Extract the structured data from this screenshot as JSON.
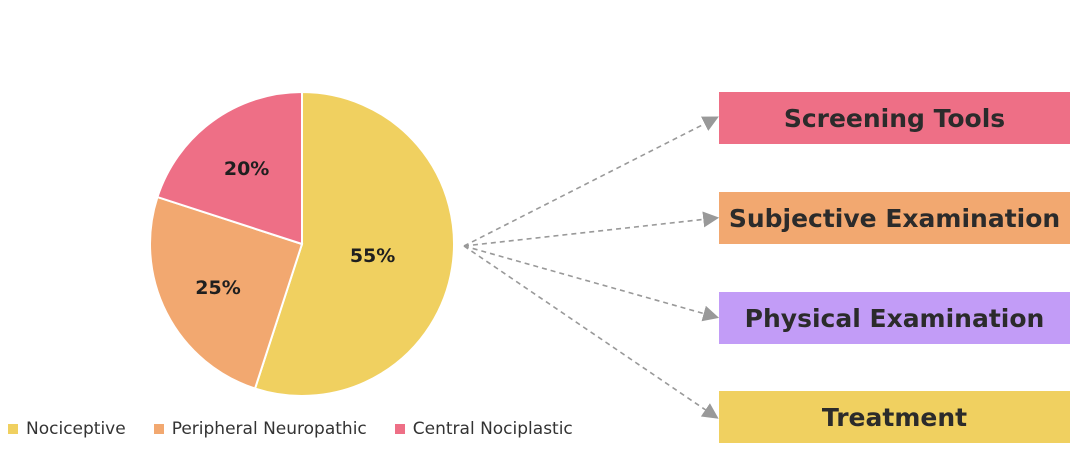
{
  "chart_data": {
    "type": "pie",
    "categories": [
      "Nociceptive",
      "Peripheral Neuropathic",
      "Central Nociplastic"
    ],
    "values": [
      55,
      25,
      20
    ],
    "labels": [
      "55%",
      "25%",
      "20%"
    ],
    "colors": [
      "#f0d060",
      "#f2a870",
      "#ee6f86"
    ],
    "legend_position": "bottom"
  },
  "boxes": [
    {
      "label": "Screening Tools",
      "color": "#ee6f86"
    },
    {
      "label": "Subjective Examination",
      "color": "#f2a870"
    },
    {
      "label": "Physical Examination",
      "color": "#c29cf7"
    },
    {
      "label": "Treatment",
      "color": "#f0d060"
    }
  ],
  "arrow_color": "#999999"
}
